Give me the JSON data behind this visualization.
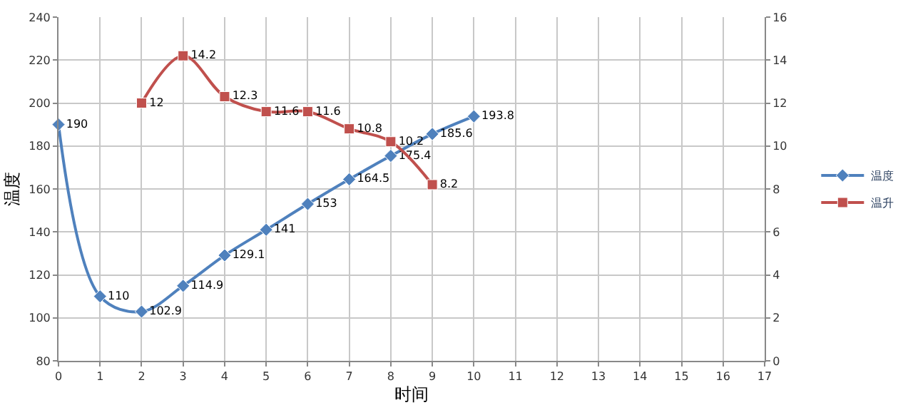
{
  "chart_data": {
    "type": "line",
    "xlabel": "时间",
    "ylabel": "温度",
    "xlim": [
      0,
      17
    ],
    "xticks": [
      0,
      1,
      2,
      3,
      4,
      5,
      6,
      7,
      8,
      9,
      10,
      11,
      12,
      13,
      14,
      15,
      16,
      17
    ],
    "ylim": [
      80,
      240
    ],
    "yticks": [
      80,
      100,
      120,
      140,
      160,
      180,
      200,
      220,
      240
    ],
    "y2lim": [
      0,
      16
    ],
    "y2ticks": [
      0,
      2,
      4,
      6,
      8,
      10,
      12,
      14,
      16
    ],
    "grid": true,
    "legend": "right",
    "marker": "diamond",
    "data_labels": true,
    "series": [
      {
        "name": "温度",
        "color": "#4f81bd",
        "x": [
          0,
          1,
          2,
          3,
          4,
          5,
          6,
          7,
          8,
          9,
          10
        ],
        "values": [
          190,
          110,
          102.9,
          114.9,
          129.1,
          141,
          153,
          164.5,
          175.4,
          185.6,
          193.8
        ]
      },
      {
        "name": "温升",
        "color": "#c0504d",
        "axis": "y2",
        "marker": "square",
        "x": [
          2,
          3,
          4,
          5,
          6,
          7,
          8,
          9
        ],
        "values": [
          12,
          14.2,
          12.3,
          11.6,
          11.6,
          10.8,
          10.2,
          8.2
        ]
      }
    ]
  }
}
